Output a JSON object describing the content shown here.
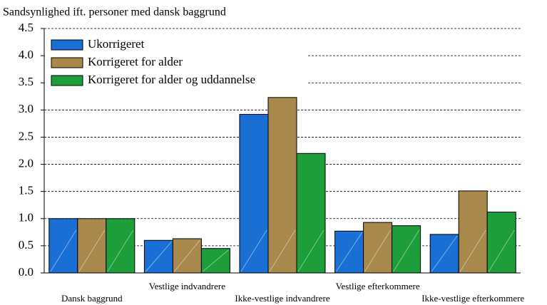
{
  "chart_data": {
    "type": "bar",
    "y_label": "Sandsynlighed ift. personer med dansk baggrund",
    "categories": [
      "Dansk baggrund",
      "Vestlige indvandrere",
      "Ikke-vestlige indvandrere",
      "Vestlige efterkommere",
      "Ikke-vestlige efterkommere"
    ],
    "series": [
      {
        "name": "Ukorrigeret",
        "color": "#1a6fd4",
        "values": [
          1.0,
          0.6,
          2.92,
          0.77,
          0.71
        ]
      },
      {
        "name": "Korrigeret for alder",
        "color": "#a8894b",
        "values": [
          1.0,
          0.63,
          3.23,
          0.93,
          1.51
        ]
      },
      {
        "name": "Korrigeret for alder og uddannelse",
        "color": "#1e9e3a",
        "values": [
          1.0,
          0.45,
          2.2,
          0.87,
          1.12
        ]
      }
    ],
    "ylim": [
      0,
      4.5
    ],
    "yticks": [
      {
        "value": 0,
        "label": "0.0"
      },
      0.5,
      {
        "value": 1,
        "label": "1.0"
      },
      1.5,
      {
        "value": 2,
        "label": "2.0"
      },
      2.5,
      {
        "value": 3,
        "label": "3.0"
      },
      3.5,
      {
        "value": 4,
        "label": "4.0"
      },
      4.5
    ],
    "grid": true,
    "legend": "upper left"
  }
}
